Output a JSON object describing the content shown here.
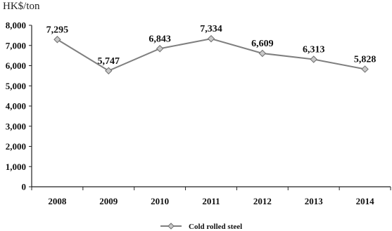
{
  "chart_data": {
    "type": "line",
    "unit_label": "HK$/ton",
    "categories": [
      "2008",
      "2009",
      "2010",
      "2011",
      "2012",
      "2013",
      "2014"
    ],
    "series": [
      {
        "name": "Cold rolled steel",
        "values": [
          7295,
          5747,
          6843,
          7334,
          6609,
          6313,
          5828
        ],
        "data_labels": [
          "7,295",
          "5,747",
          "6,843",
          "7,334",
          "6,609",
          "6,313",
          "5,828"
        ],
        "color": "#7f7f7f"
      }
    ],
    "y_ticks": [
      "0",
      "1,000",
      "2,000",
      "3,000",
      "4,000",
      "5,000",
      "6,000",
      "7,000",
      "8,000"
    ],
    "ylim": [
      0,
      8000
    ],
    "grid": false,
    "legend": "bottom-center"
  }
}
